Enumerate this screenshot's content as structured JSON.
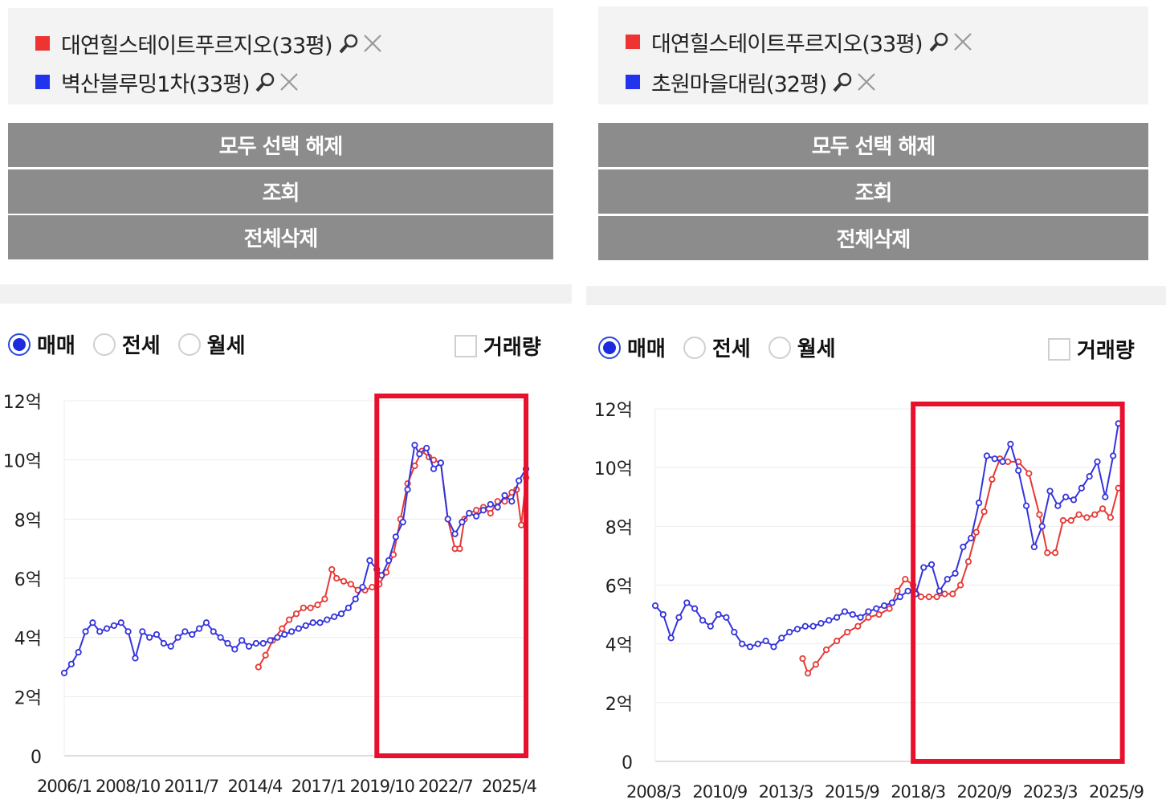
{
  "colors": {
    "series_red": "#e53935",
    "series_blue": "#3333dd",
    "highlight": "#e8112d",
    "button_bg": "#8c8c8c"
  },
  "panels": [
    {
      "legend": [
        {
          "label": "대연힐스테이트푸르지오(33평)",
          "color": "#ee3333"
        },
        {
          "label": "벽산블루밍1차(33평)",
          "color": "#2233ee"
        }
      ],
      "buttons": {
        "clear_all": "모두 선택 해제",
        "query": "조회",
        "delete_all": "전체삭제"
      },
      "radios": [
        {
          "label": "매매",
          "selected": true
        },
        {
          "label": "전세",
          "selected": false
        },
        {
          "label": "월세",
          "selected": false
        }
      ],
      "checkbox": {
        "label": "거래량",
        "checked": false
      }
    },
    {
      "legend": [
        {
          "label": "대연힐스테이트푸르지오(33평)",
          "color": "#ee3333"
        },
        {
          "label": "초원마을대림(32평)",
          "color": "#2233ee"
        }
      ],
      "buttons": {
        "clear_all": "모두 선택 해제",
        "query": "조회",
        "delete_all": "전체삭제"
      },
      "radios": [
        {
          "label": "매매",
          "selected": true
        },
        {
          "label": "전세",
          "selected": false
        },
        {
          "label": "월세",
          "selected": false
        }
      ],
      "checkbox": {
        "label": "거래량",
        "checked": false
      }
    }
  ],
  "chart_data": [
    {
      "type": "line",
      "y_ticks": [
        "0",
        "2억",
        "4억",
        "6억",
        "8억",
        "10억",
        "12억"
      ],
      "x_ticks": [
        "2006/1",
        "2008/10",
        "2011/7",
        "2014/4",
        "2017/1",
        "2019/10",
        "2022/7",
        "2025/4"
      ],
      "x_range": [
        2006.0,
        2025.6
      ],
      "ylim": [
        0,
        12
      ],
      "highlight_x_range": [
        2019.2,
        2025.5
      ],
      "series": [
        {
          "name": "대연힐스테이트푸르지오(33평)",
          "color": "#e53935",
          "x": [
            2014.2,
            2014.5,
            2014.8,
            2015.2,
            2015.5,
            2015.8,
            2016.1,
            2016.4,
            2016.7,
            2017.0,
            2017.3,
            2017.5,
            2017.8,
            2018.1,
            2018.4,
            2018.7,
            2019.0,
            2019.3,
            2019.6,
            2019.9,
            2020.2,
            2020.5,
            2020.8,
            2021.1,
            2021.4,
            2021.6,
            2021.9,
            2022.2,
            2022.5,
            2022.7,
            2022.9,
            2023.1,
            2023.4,
            2023.7,
            2024.0,
            2024.3,
            2024.6,
            2024.9,
            2025.1,
            2025.3,
            2025.5
          ],
          "y": [
            3.0,
            3.4,
            3.9,
            4.3,
            4.6,
            4.8,
            5.0,
            5.0,
            5.1,
            5.3,
            6.3,
            6.0,
            5.9,
            5.8,
            5.6,
            5.6,
            5.7,
            5.8,
            6.2,
            6.8,
            8.0,
            9.2,
            9.8,
            10.3,
            10.1,
            10.0,
            9.9,
            8.0,
            7.0,
            7.0,
            8.0,
            8.2,
            8.3,
            8.4,
            8.2,
            8.6,
            8.6,
            8.9,
            9.0,
            7.8,
            9.4
          ]
        },
        {
          "name": "벽산블루밍1차(33평)",
          "color": "#3333dd",
          "x": [
            2006.0,
            2006.3,
            2006.6,
            2006.9,
            2007.2,
            2007.5,
            2007.8,
            2008.1,
            2008.4,
            2008.7,
            2009.0,
            2009.3,
            2009.6,
            2009.9,
            2010.2,
            2010.5,
            2010.8,
            2011.1,
            2011.4,
            2011.7,
            2012.0,
            2012.3,
            2012.6,
            2012.9,
            2013.2,
            2013.5,
            2013.8,
            2014.1,
            2014.4,
            2014.7,
            2015.0,
            2015.3,
            2015.6,
            2015.9,
            2016.2,
            2016.5,
            2016.8,
            2017.1,
            2017.4,
            2017.7,
            2018.0,
            2018.3,
            2018.6,
            2018.9,
            2019.2,
            2019.4,
            2019.7,
            2020.0,
            2020.3,
            2020.5,
            2020.8,
            2021.0,
            2021.3,
            2021.6,
            2021.9,
            2022.2,
            2022.5,
            2022.8,
            2023.1,
            2023.4,
            2023.7,
            2024.0,
            2024.3,
            2024.6,
            2024.9,
            2025.2,
            2025.5
          ],
          "y": [
            2.8,
            3.1,
            3.5,
            4.2,
            4.5,
            4.2,
            4.3,
            4.4,
            4.5,
            4.2,
            3.3,
            4.2,
            4.0,
            4.1,
            3.8,
            3.7,
            4.0,
            4.2,
            4.1,
            4.3,
            4.5,
            4.2,
            4.0,
            3.8,
            3.6,
            3.9,
            3.7,
            3.8,
            3.8,
            3.9,
            4.0,
            4.1,
            4.2,
            4.3,
            4.4,
            4.5,
            4.5,
            4.6,
            4.7,
            4.8,
            5.0,
            5.3,
            5.7,
            6.6,
            6.3,
            6.1,
            6.6,
            7.4,
            7.9,
            9.0,
            10.5,
            10.2,
            10.4,
            9.7,
            9.9,
            8.0,
            7.5,
            7.9,
            8.2,
            8.1,
            8.3,
            8.5,
            8.4,
            8.8,
            8.6,
            9.3,
            9.7
          ]
        }
      ]
    },
    {
      "type": "line",
      "y_ticks": [
        "0",
        "2억",
        "4억",
        "6억",
        "8억",
        "10억",
        "12억"
      ],
      "x_ticks": [
        "2008/3",
        "2010/9",
        "2013/3",
        "2015/9",
        "2018/3",
        "2020/9",
        "2023/3",
        "2025/9"
      ],
      "x_range": [
        2008.2,
        2025.9
      ],
      "ylim": [
        0,
        12
      ],
      "highlight_x_range": [
        2018.0,
        2025.95
      ],
      "series": [
        {
          "name": "대연힐스테이트푸르지오(33평)",
          "color": "#e53935",
          "x": [
            2013.8,
            2014.0,
            2014.3,
            2014.7,
            2015.1,
            2015.5,
            2015.9,
            2016.3,
            2016.7,
            2017.1,
            2017.4,
            2017.7,
            2018.0,
            2018.3,
            2018.6,
            2018.9,
            2019.2,
            2019.5,
            2019.8,
            2020.1,
            2020.4,
            2020.7,
            2021.0,
            2021.3,
            2021.6,
            2022.0,
            2022.4,
            2022.8,
            2023.1,
            2023.4,
            2023.7,
            2024.0,
            2024.3,
            2024.6,
            2024.9,
            2025.2,
            2025.5,
            2025.8
          ],
          "y": [
            3.5,
            3.0,
            3.3,
            3.8,
            4.1,
            4.4,
            4.6,
            4.9,
            5.0,
            5.2,
            5.8,
            6.2,
            6.0,
            5.6,
            5.6,
            5.6,
            5.7,
            5.7,
            6.0,
            6.8,
            7.8,
            8.5,
            9.6,
            10.3,
            10.2,
            10.2,
            9.8,
            8.4,
            7.1,
            7.1,
            8.2,
            8.2,
            8.4,
            8.3,
            8.4,
            8.6,
            8.3,
            9.3
          ]
        },
        {
          "name": "초원마을대림(32평)",
          "color": "#3333dd",
          "x": [
            2008.2,
            2008.5,
            2008.8,
            2009.1,
            2009.4,
            2009.7,
            2010.0,
            2010.3,
            2010.6,
            2010.9,
            2011.2,
            2011.5,
            2011.8,
            2012.1,
            2012.4,
            2012.7,
            2013.0,
            2013.3,
            2013.6,
            2013.9,
            2014.2,
            2014.5,
            2014.8,
            2015.1,
            2015.4,
            2015.7,
            2016.0,
            2016.3,
            2016.6,
            2016.9,
            2017.2,
            2017.5,
            2017.8,
            2018.1,
            2018.4,
            2018.7,
            2019.0,
            2019.3,
            2019.6,
            2019.9,
            2020.2,
            2020.5,
            2020.8,
            2021.1,
            2021.4,
            2021.7,
            2022.0,
            2022.3,
            2022.6,
            2022.9,
            2023.2,
            2023.5,
            2023.8,
            2024.1,
            2024.4,
            2024.7,
            2025.0,
            2025.3,
            2025.6,
            2025.8
          ],
          "y": [
            5.3,
            5.0,
            4.2,
            4.9,
            5.4,
            5.2,
            4.8,
            4.6,
            5.0,
            4.9,
            4.4,
            4.0,
            3.9,
            4.0,
            4.1,
            3.9,
            4.2,
            4.4,
            4.5,
            4.6,
            4.6,
            4.7,
            4.8,
            4.9,
            5.1,
            5.0,
            4.9,
            5.1,
            5.2,
            5.3,
            5.4,
            5.6,
            5.8,
            5.7,
            6.6,
            6.7,
            5.8,
            6.2,
            6.4,
            7.3,
            7.6,
            8.8,
            10.4,
            10.3,
            10.2,
            10.8,
            9.9,
            8.7,
            7.3,
            8.0,
            9.2,
            8.7,
            9.0,
            8.9,
            9.3,
            9.7,
            10.2,
            9.0,
            10.4,
            11.5
          ]
        }
      ]
    }
  ]
}
